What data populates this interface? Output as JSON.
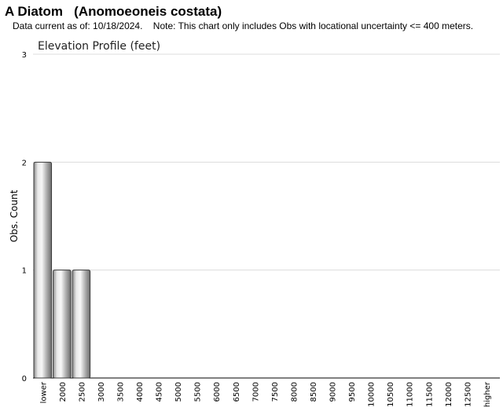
{
  "header": {
    "title": "A Diatom   (Anomoeoneis costata)",
    "subtitle": "Data current as of: 10/18/2024.    Note: This chart only includes Obs with locational uncertainty <= 400 meters."
  },
  "chart_data": {
    "type": "bar",
    "title": "Elevation Profile (feet)",
    "xlabel": "",
    "ylabel": "Obs. Count",
    "categories": [
      "lower",
      "2000",
      "2500",
      "3000",
      "3500",
      "4000",
      "4500",
      "5000",
      "5500",
      "6000",
      "6500",
      "7000",
      "7500",
      "8000",
      "8500",
      "9000",
      "9500",
      "10000",
      "10500",
      "11000",
      "11500",
      "12000",
      "12500",
      "higher"
    ],
    "values": [
      2,
      1,
      1,
      0,
      0,
      0,
      0,
      0,
      0,
      0,
      0,
      0,
      0,
      0,
      0,
      0,
      0,
      0,
      0,
      0,
      0,
      0,
      0,
      0
    ],
    "ylim": [
      0,
      3
    ],
    "yticks": [
      0,
      1,
      2,
      3
    ],
    "grid": true,
    "bar_color": "#b0b0b0"
  }
}
